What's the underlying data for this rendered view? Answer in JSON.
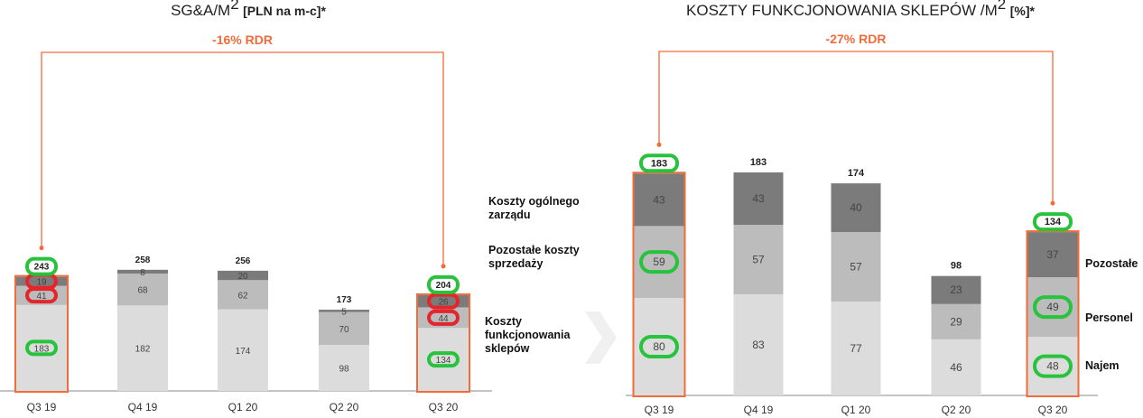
{
  "colors": {
    "accent": "#f26b3a",
    "green": "#27c33c",
    "red": "#e3262b",
    "seg_dark": "#7b7b7b",
    "seg_mid": "#bcbcbc",
    "seg_light": "#dcdcdc",
    "chevron": "#f0f0f0",
    "axis": "#888888"
  },
  "chart_data": [
    {
      "type": "bar",
      "stacked": true,
      "title": "SG&A/M",
      "title_superscript": "2",
      "title_suffix": "[PLN na m-c]*",
      "categories": [
        "Q3 19",
        "Q4 19",
        "Q1 20",
        "Q2 20",
        "Q3 20"
      ],
      "series": [
        {
          "name": "Koszty funkcjonowania sklepów",
          "values": [
            183,
            182,
            174,
            98,
            134
          ]
        },
        {
          "name": "Pozostałe koszty sprzedaży",
          "values": [
            41,
            68,
            62,
            70,
            44
          ]
        },
        {
          "name": "Koszty ogólnego zarządu",
          "values": [
            19,
            8,
            20,
            5,
            26
          ]
        }
      ],
      "totals": [
        243,
        258,
        256,
        173,
        204
      ],
      "annotation": "-16% RDR",
      "ylim": [
        0,
        280
      ]
    },
    {
      "type": "bar",
      "stacked": true,
      "title": "KOSZTY FUNKCJONOWANIA SKLEPÓW /M",
      "title_superscript": "2",
      "title_suffix": "[%]*",
      "categories": [
        "Q3 19",
        "Q4 19",
        "Q1 20",
        "Q2 20",
        "Q3 20"
      ],
      "series": [
        {
          "name": "Najem",
          "values": [
            80,
            83,
            77,
            46,
            48
          ]
        },
        {
          "name": "Personel",
          "values": [
            59,
            57,
            57,
            29,
            49
          ]
        },
        {
          "name": "Pozostałe",
          "values": [
            43,
            43,
            40,
            23,
            37
          ]
        }
      ],
      "totals": [
        183,
        183,
        174,
        98,
        134
      ],
      "annotation": "-27% RDR",
      "ylim": [
        0,
        200
      ]
    }
  ]
}
